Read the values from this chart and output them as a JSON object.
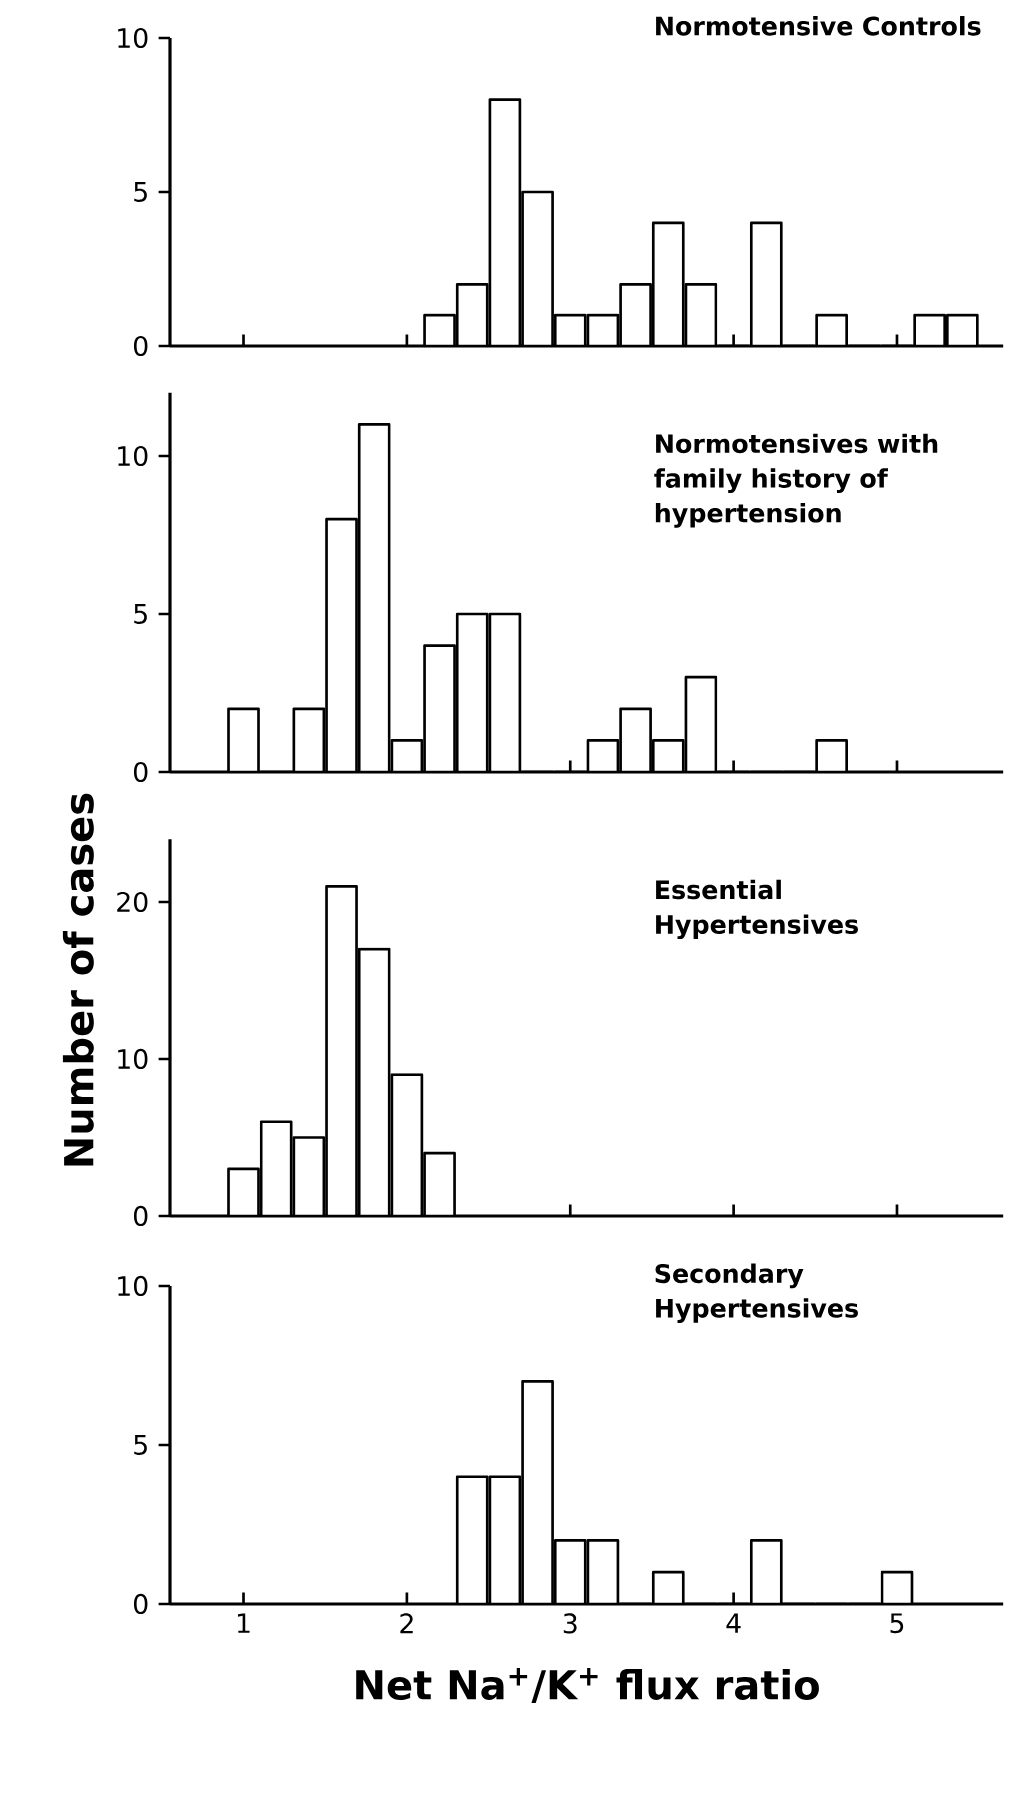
{
  "chart_data": [
    {
      "type": "histogram",
      "title": "Normotensive Controls",
      "bins": [
        2.1,
        2.3,
        2.5,
        2.7,
        2.9,
        3.1,
        3.3,
        3.5,
        3.7,
        3.9,
        4.1,
        4.3,
        4.5,
        4.7,
        4.9,
        5.1,
        5.3,
        5.5
      ],
      "values": [
        1,
        2,
        8,
        5,
        1,
        1,
        2,
        4,
        2,
        0,
        4,
        0,
        1,
        0,
        0,
        1,
        1
      ],
      "xlim": [
        0.55,
        5.65
      ],
      "ylim": [
        0,
        10
      ],
      "xticks": [
        1,
        2,
        3,
        4,
        5
      ],
      "yticks": [
        0,
        5,
        10
      ],
      "tick_labels": "y",
      "color": "#ffffff"
    },
    {
      "type": "histogram",
      "title": "Normotensives with family history of hypertension",
      "ylabel": "Number of cases",
      "bins": [
        0.9,
        1.1,
        1.3,
        1.5,
        1.7,
        1.9,
        2.1,
        2.3,
        2.5,
        2.7,
        2.9,
        3.1,
        3.3,
        3.5,
        3.7,
        3.9,
        4.1,
        4.3,
        4.5,
        4.7
      ],
      "values": [
        2,
        0,
        2,
        8,
        11,
        1,
        4,
        5,
        5,
        0,
        0,
        1,
        2,
        1,
        3,
        0,
        0,
        0,
        1
      ],
      "xlim": [
        0.55,
        5.65
      ],
      "ylim": [
        0,
        12
      ],
      "xticks": [
        1,
        2,
        3,
        4,
        5
      ],
      "yticks": [
        0,
        5,
        10
      ],
      "tick_labels": "y",
      "color": "#ffffff"
    },
    {
      "type": "histogram",
      "title": "Essential Hypertensives",
      "bins": [
        0.9,
        1.1,
        1.3,
        1.5,
        1.7,
        1.9,
        2.1,
        2.3
      ],
      "values": [
        3,
        6,
        5,
        21,
        17,
        9,
        4
      ],
      "xlim": [
        0.55,
        5.65
      ],
      "ylim": [
        0,
        24
      ],
      "xticks": [
        1,
        2,
        3,
        4,
        5
      ],
      "yticks": [
        0,
        10,
        20
      ],
      "tick_labels": "y",
      "color": "#ffffff"
    },
    {
      "type": "histogram",
      "title": "Secondary Hypertensives",
      "xlabel": "Net Na$^{+}$/K$^{+}$ flux ratio",
      "bins": [
        2.3,
        2.5,
        2.7,
        2.9,
        3.1,
        3.3,
        3.5,
        3.7,
        3.9,
        4.1,
        4.3,
        4.5,
        4.7,
        4.9,
        5.1
      ],
      "values": [
        4,
        4,
        7,
        2,
        2,
        0,
        1,
        0,
        0,
        2,
        0,
        0,
        0,
        1
      ],
      "xlim": [
        0.55,
        5.65
      ],
      "ylim": [
        0,
        10
      ],
      "yticks": [
        0,
        5,
        10
      ],
      "xticks": [
        1,
        2,
        3,
        4,
        5
      ],
      "color": "#ffffff"
    }
  ]
}
